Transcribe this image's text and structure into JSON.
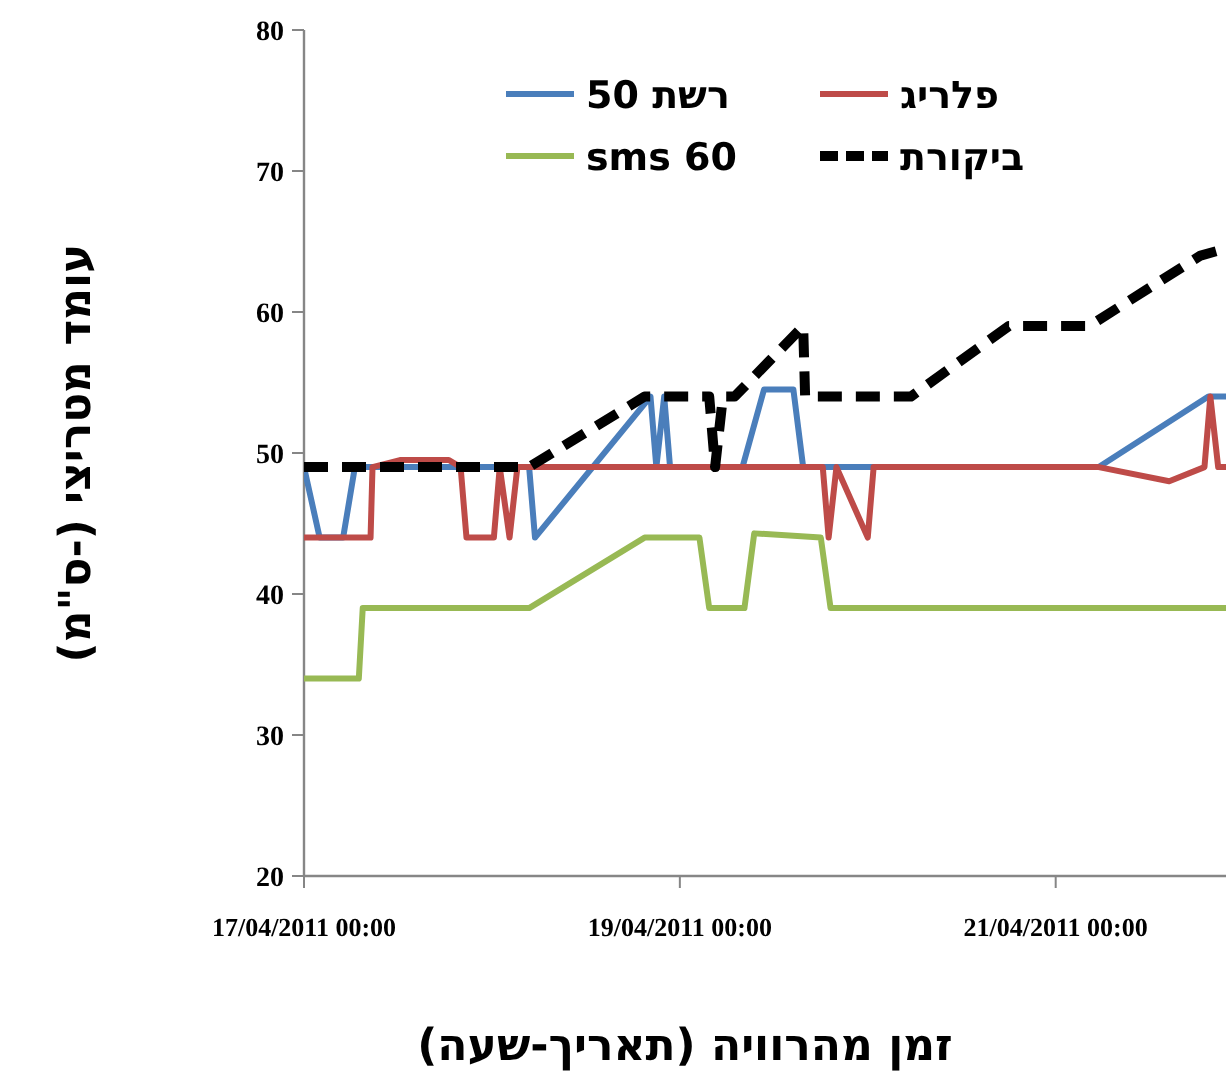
{
  "chart_data": {
    "type": "line",
    "xlabel": "זמן מהרוויה (תאריך-שעה)",
    "ylabel": "עומד מטריצי   (-ס\"מ)",
    "xlim": [
      "2011-04-17T00:00",
      "2011-04-21T21:45"
    ],
    "xticks": [
      {
        "value": "2011-04-17T00:00",
        "label": "17/04/2011 00:00"
      },
      {
        "value": "2011-04-19T00:00",
        "label": "19/04/2011 00:00"
      },
      {
        "value": "2011-04-21T00:00",
        "label": "21/04/2011 00:00"
      }
    ],
    "ylim": [
      20,
      80
    ],
    "yticks": [
      20,
      30,
      40,
      50,
      60,
      70,
      80
    ],
    "grid": false,
    "legend": "top",
    "marker": "none",
    "series": [
      {
        "name": "רשת 50",
        "color": "#4a7ebb",
        "line_style": "solid",
        "x": [
          "2011-04-17T00:00",
          "2011-04-17T02:00",
          "2011-04-17T05:00",
          "2011-04-17T06:30",
          "2011-04-18T04:45",
          "2011-04-18T05:30",
          "2011-04-18T20:15",
          "2011-04-18T21:00",
          "2011-04-18T22:00",
          "2011-04-18T22:45",
          "2011-04-19T08:00",
          "2011-04-19T10:45",
          "2011-04-19T14:30",
          "2011-04-19T15:45",
          "2011-04-21T05:30",
          "2011-04-21T19:30",
          "2011-04-21T21:45"
        ],
        "values": [
          49,
          44,
          44,
          49,
          49,
          44,
          54,
          49,
          54,
          49,
          49,
          54.5,
          54.5,
          49,
          49,
          54,
          54
        ]
      },
      {
        "name": "פלריג",
        "color": "#be4b48",
        "line_style": "solid",
        "x": [
          "2011-04-17T00:00",
          "2011-04-17T08:30",
          "2011-04-17T08:45",
          "2011-04-17T12:15",
          "2011-04-17T18:30",
          "2011-04-17T20:00",
          "2011-04-17T20:45",
          "2011-04-18T00:15",
          "2011-04-18T01:00",
          "2011-04-18T02:15",
          "2011-04-18T03:15",
          "2011-04-19T18:15",
          "2011-04-19T19:00",
          "2011-04-19T20:00",
          "2011-04-20T00:00",
          "2011-04-20T00:45",
          "2011-04-21T05:30",
          "2011-04-21T14:30",
          "2011-04-21T19:00",
          "2011-04-21T19:45",
          "2011-04-21T20:45",
          "2011-04-21T21:45"
        ],
        "values": [
          44,
          44,
          49,
          49.5,
          49.5,
          49,
          44,
          44,
          49,
          44,
          49,
          49,
          44,
          49,
          44,
          49,
          49,
          48,
          49,
          54,
          49,
          49
        ]
      },
      {
        "name": "sms 60",
        "color": "#98b954",
        "line_style": "solid",
        "x": [
          "2011-04-17T00:00",
          "2011-04-17T07:00",
          "2011-04-17T07:30",
          "2011-04-18T04:45",
          "2011-04-18T19:30",
          "2011-04-19T02:30",
          "2011-04-19T03:45",
          "2011-04-19T08:15",
          "2011-04-19T09:30",
          "2011-04-19T18:00",
          "2011-04-19T19:15",
          "2011-04-21T21:45"
        ],
        "values": [
          34,
          34,
          39,
          39,
          44,
          44,
          39,
          39,
          44.3,
          44,
          39,
          39
        ]
      },
      {
        "name": "ביקורת",
        "color": "#000000",
        "line_style": "dashed",
        "x": [
          "2011-04-17T00:00",
          "2011-04-18T04:45",
          "2011-04-18T19:30",
          "2011-04-19T03:45",
          "2011-04-19T04:30",
          "2011-04-19T05:30",
          "2011-04-19T07:00",
          "2011-04-19T15:45",
          "2011-04-19T16:00",
          "2011-04-20T05:30",
          "2011-04-20T18:00",
          "2011-04-21T04:15",
          "2011-04-21T18:30",
          "2011-04-21T21:45"
        ],
        "values": [
          49,
          49,
          54,
          54,
          49,
          54,
          54,
          59,
          54,
          54,
          59,
          59,
          64,
          64.5
        ]
      }
    ]
  }
}
